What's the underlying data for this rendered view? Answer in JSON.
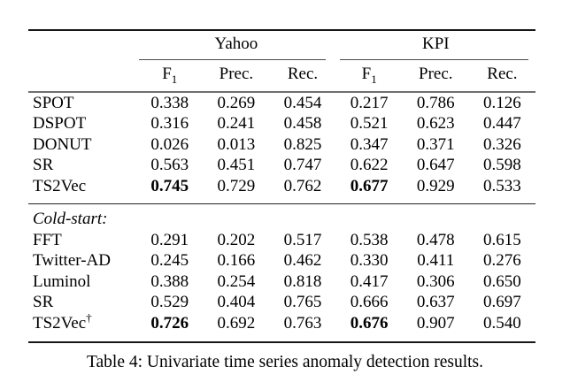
{
  "table": {
    "group_headers": [
      {
        "label": "Yahoo"
      },
      {
        "label": "KPI"
      }
    ],
    "metric_headers": {
      "f_base": "F",
      "f_sub": "1",
      "prec": "Prec.",
      "rec": "Rec."
    },
    "sections": [
      {
        "rows": [
          {
            "name": "SPOT",
            "values": [
              "0.338",
              "0.269",
              "0.454",
              "0.217",
              "0.786",
              "0.126"
            ]
          },
          {
            "name": "DSPOT",
            "values": [
              "0.316",
              "0.241",
              "0.458",
              "0.521",
              "0.623",
              "0.447"
            ]
          },
          {
            "name": "DONUT",
            "values": [
              "0.026",
              "0.013",
              "0.825",
              "0.347",
              "0.371",
              "0.326"
            ]
          },
          {
            "name": "SR",
            "values": [
              "0.563",
              "0.451",
              "0.747",
              "0.622",
              "0.647",
              "0.598"
            ]
          },
          {
            "name": "TS2Vec",
            "values": [
              "0.745",
              "0.729",
              "0.762",
              "0.677",
              "0.929",
              "0.533"
            ]
          }
        ]
      },
      {
        "label": "Cold-start:",
        "rows": [
          {
            "name": "FFT",
            "values": [
              "0.291",
              "0.202",
              "0.517",
              "0.538",
              "0.478",
              "0.615"
            ]
          },
          {
            "name": "Twitter-AD",
            "values": [
              "0.245",
              "0.166",
              "0.462",
              "0.330",
              "0.411",
              "0.276"
            ]
          },
          {
            "name": "Luminol",
            "values": [
              "0.388",
              "0.254",
              "0.818",
              "0.417",
              "0.306",
              "0.650"
            ]
          },
          {
            "name": "SR",
            "values": [
              "0.529",
              "0.404",
              "0.765",
              "0.666",
              "0.637",
              "0.697"
            ]
          },
          {
            "name": "TS2Vec",
            "name_sup": "†",
            "values": [
              "0.726",
              "0.692",
              "0.763",
              "0.676",
              "0.907",
              "0.540"
            ]
          }
        ]
      }
    ]
  },
  "caption": "Table 4: Univariate time series anomaly detection results."
}
